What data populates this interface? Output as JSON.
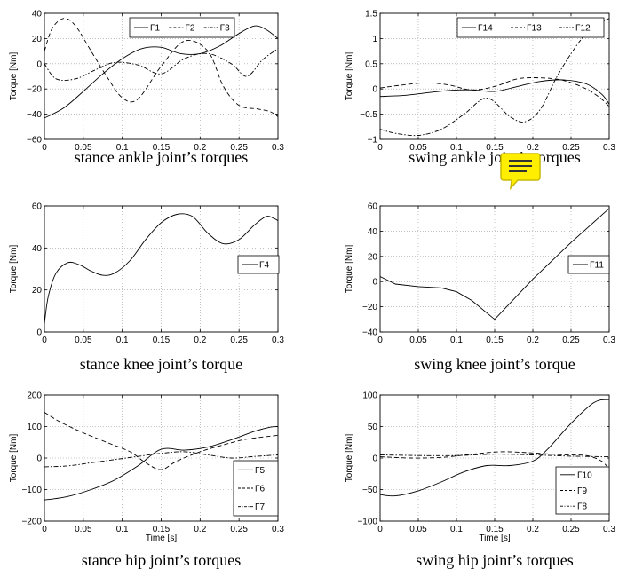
{
  "chart_data": [
    {
      "type": "line",
      "caption": "stance ankle joint’s torques",
      "ylabel": "Torque [Nm]",
      "xlabel": "",
      "xlim": [
        0,
        0.3
      ],
      "ylim": [
        -60,
        40
      ],
      "xticks": [
        "0",
        "0.05",
        "0.1",
        "0.15",
        "0.2",
        "0.25",
        "0.3"
      ],
      "yticks": [
        "−60",
        "−40",
        "−20",
        "0",
        "20",
        "40"
      ],
      "yticks_values": [
        -60,
        -40,
        -20,
        0,
        20,
        40
      ],
      "grid": true,
      "legend": "top-right",
      "series": [
        {
          "name": "Γ1",
          "style": "solid",
          "x": [
            0,
            0.025,
            0.05,
            0.075,
            0.1,
            0.125,
            0.15,
            0.175,
            0.2,
            0.225,
            0.25,
            0.27,
            0.285,
            0.3
          ],
          "y": [
            -43,
            -35,
            -22,
            -8,
            4,
            12,
            13,
            8,
            8,
            14,
            24,
            30,
            27,
            20
          ]
        },
        {
          "name": "Γ2",
          "style": "dashed",
          "x": [
            0,
            0.01,
            0.025,
            0.04,
            0.06,
            0.08,
            0.1,
            0.12,
            0.15,
            0.18,
            0.21,
            0.23,
            0.25,
            0.275,
            0.29,
            0.3
          ],
          "y": [
            10,
            28,
            36,
            30,
            10,
            -10,
            -27,
            -28,
            -2,
            18,
            10,
            -18,
            -33,
            -36,
            -38,
            -42
          ]
        },
        {
          "name": "Γ3",
          "style": "dash-dot",
          "x": [
            0,
            0.015,
            0.04,
            0.065,
            0.09,
            0.12,
            0.15,
            0.18,
            0.21,
            0.24,
            0.26,
            0.28,
            0.3
          ],
          "y": [
            0,
            -12,
            -12,
            -5,
            1,
            -1,
            -8,
            4,
            8,
            0,
            -10,
            3,
            12
          ]
        }
      ]
    },
    {
      "type": "line",
      "caption": "swing ankle joint’s torques",
      "ylabel": "Torque [Nm]",
      "xlabel": "",
      "xlim": [
        0,
        0.3
      ],
      "ylim": [
        -1,
        1.5
      ],
      "xticks": [
        "0",
        "0.05",
        "0.1",
        "0.15",
        "0.2",
        "0.25",
        "0.3"
      ],
      "yticks": [
        "−1",
        "−0.5",
        "0",
        "0.5",
        "1",
        "1.5"
      ],
      "yticks_values": [
        -1,
        -0.5,
        0,
        0.5,
        1,
        1.5
      ],
      "grid": true,
      "legend": "top-right",
      "series": [
        {
          "name": "Γ14",
          "style": "solid",
          "x": [
            0,
            0.03,
            0.06,
            0.09,
            0.12,
            0.15,
            0.18,
            0.21,
            0.24,
            0.27,
            0.29,
            0.3
          ],
          "y": [
            -0.15,
            -0.13,
            -0.08,
            -0.03,
            -0.02,
            -0.05,
            0.05,
            0.15,
            0.18,
            0.1,
            -0.1,
            -0.3
          ]
        },
        {
          "name": "Γ13",
          "style": "dashed",
          "x": [
            0,
            0.03,
            0.06,
            0.09,
            0.12,
            0.15,
            0.18,
            0.21,
            0.24,
            0.27,
            0.29,
            0.3
          ],
          "y": [
            0.02,
            0.08,
            0.12,
            0.08,
            -0.02,
            0.05,
            0.2,
            0.22,
            0.17,
            0.0,
            -0.2,
            -0.35
          ]
        },
        {
          "name": "Γ12",
          "style": "dash-dot",
          "x": [
            0,
            0.02,
            0.05,
            0.08,
            0.11,
            0.14,
            0.17,
            0.19,
            0.21,
            0.23,
            0.25,
            0.27,
            0.29,
            0.3
          ],
          "y": [
            -0.8,
            -0.88,
            -0.92,
            -0.8,
            -0.5,
            -0.18,
            -0.55,
            -0.65,
            -0.4,
            0.2,
            0.7,
            1.1,
            1.32,
            1.4
          ]
        }
      ]
    },
    {
      "type": "line",
      "caption": "stance knee joint’s torque",
      "ylabel": "Torque [Nm]",
      "xlabel": "",
      "xlim": [
        0,
        0.3
      ],
      "ylim": [
        0,
        60
      ],
      "xticks": [
        "0",
        "0.05",
        "0.1",
        "0.15",
        "0.2",
        "0.25",
        "0.3"
      ],
      "yticks": [
        "0",
        "20",
        "40",
        "60"
      ],
      "yticks_values": [
        0,
        20,
        40,
        60
      ],
      "grid": true,
      "legend": "center-right",
      "series": [
        {
          "name": "Γ4",
          "style": "solid",
          "x": [
            0,
            0.005,
            0.015,
            0.03,
            0.045,
            0.06,
            0.075,
            0.09,
            0.11,
            0.13,
            0.15,
            0.17,
            0.19,
            0.21,
            0.23,
            0.25,
            0.27,
            0.285,
            0.295,
            0.3
          ],
          "y": [
            4,
            17,
            28,
            33,
            32,
            29,
            27,
            28,
            34,
            44,
            52,
            56,
            55,
            47,
            42,
            44,
            51,
            55,
            54,
            53
          ]
        }
      ]
    },
    {
      "type": "line",
      "caption": "swing knee joint’s torque",
      "ylabel": "Torque [Nm]",
      "xlabel": "",
      "xlim": [
        0,
        0.3
      ],
      "ylim": [
        -40,
        60
      ],
      "xticks": [
        "0",
        "0.05",
        "0.1",
        "0.15",
        "0.2",
        "0.25",
        "0.3"
      ],
      "yticks": [
        "−40",
        "−20",
        "0",
        "20",
        "40",
        "60"
      ],
      "yticks_values": [
        -40,
        -20,
        0,
        20,
        40,
        60
      ],
      "grid": true,
      "legend": "center-right",
      "series": [
        {
          "name": "Γ11",
          "style": "solid",
          "x": [
            0,
            0.02,
            0.05,
            0.08,
            0.1,
            0.12,
            0.15,
            0.2,
            0.25,
            0.3
          ],
          "y": [
            4,
            -2,
            -4,
            -5,
            -8,
            -15,
            -30,
            2,
            31,
            58
          ]
        }
      ]
    },
    {
      "type": "line",
      "caption": "stance hip joint’s torques",
      "ylabel": "Torque [Nm]",
      "xlabel": "Time [s]",
      "xlim": [
        0,
        0.3
      ],
      "ylim": [
        -200,
        200
      ],
      "xticks": [
        "0",
        "0.05",
        "0.1",
        "0.15",
        "0.2",
        "0.25",
        "0.3"
      ],
      "yticks": [
        "−200",
        "−100",
        "0",
        "100",
        "200"
      ],
      "yticks_values": [
        -200,
        -100,
        0,
        100,
        200
      ],
      "grid": true,
      "legend": "bottom-right",
      "series": [
        {
          "name": "Γ5",
          "style": "solid",
          "x": [
            0,
            0.03,
            0.06,
            0.09,
            0.12,
            0.15,
            0.18,
            0.21,
            0.24,
            0.27,
            0.29,
            0.3
          ],
          "y": [
            -133,
            -122,
            -100,
            -70,
            -25,
            28,
            25,
            35,
            58,
            85,
            98,
            100
          ]
        },
        {
          "name": "Γ6",
          "style": "dashed",
          "x": [
            0,
            0.02,
            0.05,
            0.08,
            0.11,
            0.13,
            0.15,
            0.17,
            0.2,
            0.23,
            0.26,
            0.3
          ],
          "y": [
            145,
            115,
            80,
            50,
            20,
            -15,
            -37,
            -10,
            20,
            42,
            60,
            72
          ]
        },
        {
          "name": "Γ7",
          "style": "dash-dot",
          "x": [
            0,
            0.03,
            0.06,
            0.09,
            0.12,
            0.15,
            0.18,
            0.21,
            0.24,
            0.27,
            0.3
          ],
          "y": [
            -28,
            -25,
            -15,
            -5,
            5,
            15,
            20,
            10,
            0,
            5,
            10
          ]
        }
      ]
    },
    {
      "type": "line",
      "caption": "swing hip joint’s torques",
      "ylabel": "Torque [Nm]",
      "xlabel": "Time [s]",
      "xlim": [
        0,
        0.3
      ],
      "ylim": [
        -100,
        100
      ],
      "xticks": [
        "0",
        "0.05",
        "0.1",
        "0.15",
        "0.2",
        "0.25",
        "0.3"
      ],
      "yticks": [
        "−100",
        "−50",
        "0",
        "50",
        "100"
      ],
      "yticks_values": [
        -100,
        -50,
        0,
        50,
        100
      ],
      "grid": true,
      "legend": "bottom-right",
      "series": [
        {
          "name": "Γ10",
          "style": "solid",
          "x": [
            0,
            0.02,
            0.05,
            0.08,
            0.11,
            0.14,
            0.17,
            0.2,
            0.22,
            0.25,
            0.28,
            0.3
          ],
          "y": [
            -58,
            -60,
            -52,
            -38,
            -22,
            -12,
            -12,
            -5,
            15,
            55,
            88,
            93
          ]
        },
        {
          "name": "Γ9",
          "style": "dashed",
          "x": [
            0,
            0.04,
            0.08,
            0.12,
            0.16,
            0.2,
            0.24,
            0.27,
            0.29,
            0.3
          ],
          "y": [
            2,
            0,
            1,
            6,
            10,
            8,
            5,
            4,
            -5,
            -18
          ]
        },
        {
          "name": "Γ8",
          "style": "dash-dot",
          "x": [
            0,
            0.05,
            0.1,
            0.15,
            0.2,
            0.25,
            0.3
          ],
          "y": [
            5,
            4,
            4,
            6,
            5,
            3,
            2
          ]
        }
      ]
    }
  ],
  "note_icon": {
    "name": "note-icon",
    "color": "#ffee00"
  }
}
